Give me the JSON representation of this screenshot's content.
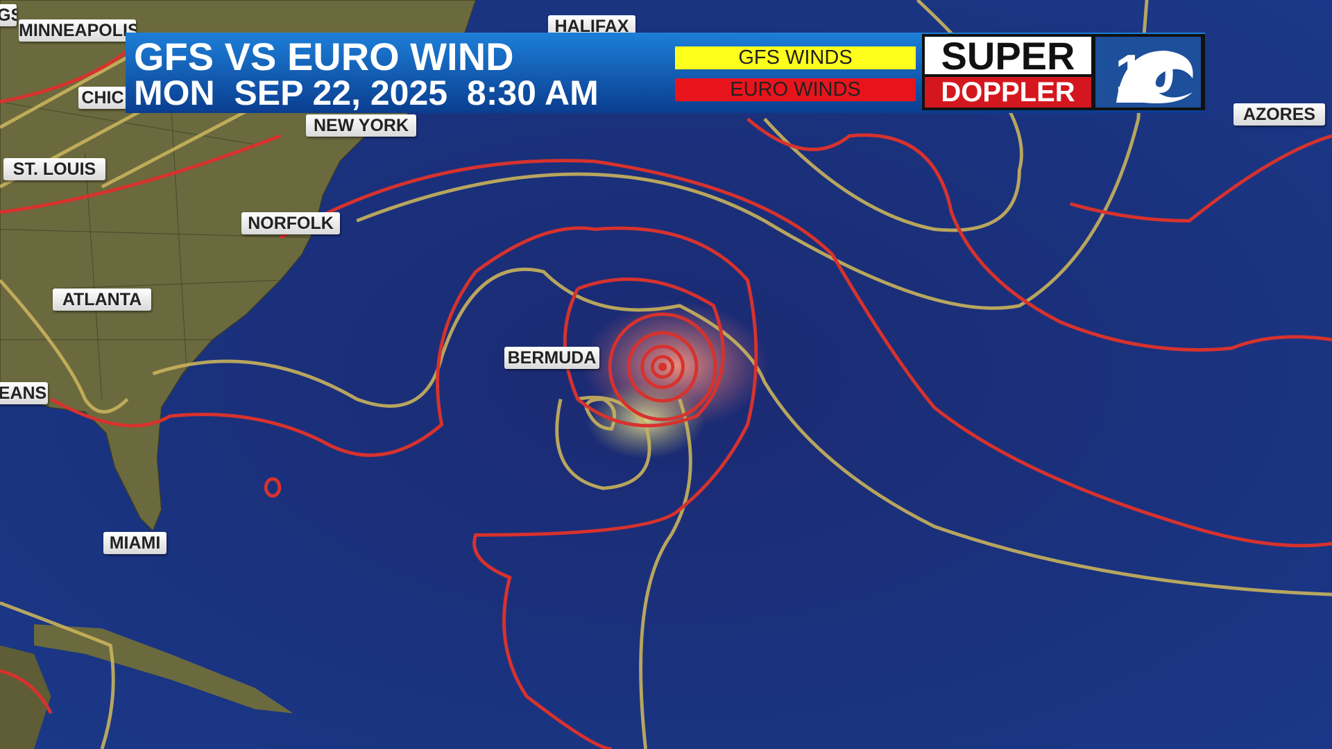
{
  "header": {
    "title": "GFS VS EURO WIND",
    "datetime": "MON  SEP 22, 2025  8:30 AM"
  },
  "legend": [
    {
      "label": "GFS WINDS"
    },
    {
      "label": "EURO WINDS"
    }
  ],
  "logo": {
    "line1": "SUPER",
    "line2": "DOPPLER",
    "number": "10"
  },
  "cities": [
    "GS",
    "MINNEAPOLIS",
    "HALIFAX",
    "CHIC",
    "NEW YORK",
    "ST. LOUIS",
    "NORFOLK",
    "ATLANTA",
    "BERMUDA",
    "EANS",
    "MIAMI",
    "AZORES"
  ]
}
